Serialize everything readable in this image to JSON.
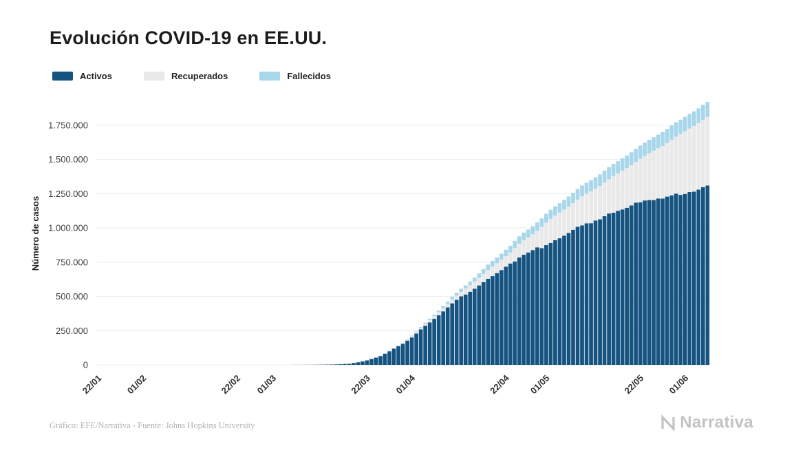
{
  "header": {
    "title": "Evolución COVID-19 en EE.UU."
  },
  "footer": {
    "credit": "Gráfico: EFE/Narrativa - Fuente: Johns Hopkins University",
    "logo_text": "Narrativa"
  },
  "chart_data": {
    "type": "bar",
    "stacked": true,
    "title": "Evolución COVID-19 en EE.UU.",
    "xlabel": "",
    "ylabel": "Número de casos",
    "grid": "horizontal",
    "legend_position": "top",
    "ylim": [
      0,
      1920061
    ],
    "yticks": [
      {
        "value": 0,
        "label": "0"
      },
      {
        "value": 250000,
        "label": "250.000"
      },
      {
        "value": 500000,
        "label": "500.000"
      },
      {
        "value": 750000,
        "label": "750.000"
      },
      {
        "value": 1000000,
        "label": "1.000.000"
      },
      {
        "value": 1250000,
        "label": "1.250.000"
      },
      {
        "value": 1500000,
        "label": "1.500.000"
      },
      {
        "value": 1750000,
        "label": "1.750.000"
      }
    ],
    "xticks": [
      {
        "label": "22/01",
        "index": 0
      },
      {
        "label": "01/02",
        "index": 10
      },
      {
        "label": "22/02",
        "index": 31
      },
      {
        "label": "01/03",
        "index": 39
      },
      {
        "label": "22/03",
        "index": 60
      },
      {
        "label": "01/04",
        "index": 70
      },
      {
        "label": "22/04",
        "index": 91
      },
      {
        "label": "01/05",
        "index": 100
      },
      {
        "label": "22/05",
        "index": 121
      },
      {
        "label": "01/06",
        "index": 131
      }
    ],
    "x": [
      "22/01",
      "23/01",
      "24/01",
      "25/01",
      "26/01",
      "27/01",
      "28/01",
      "29/01",
      "30/01",
      "31/01",
      "01/02",
      "02/02",
      "03/02",
      "04/02",
      "05/02",
      "06/02",
      "07/02",
      "08/02",
      "09/02",
      "10/02",
      "11/02",
      "12/02",
      "13/02",
      "14/02",
      "15/02",
      "16/02",
      "17/02",
      "18/02",
      "19/02",
      "20/02",
      "21/02",
      "22/02",
      "23/02",
      "24/02",
      "25/02",
      "26/02",
      "27/02",
      "28/02",
      "29/02",
      "01/03",
      "02/03",
      "03/03",
      "04/03",
      "05/03",
      "06/03",
      "07/03",
      "08/03",
      "09/03",
      "10/03",
      "11/03",
      "12/03",
      "13/03",
      "14/03",
      "15/03",
      "16/03",
      "17/03",
      "18/03",
      "19/03",
      "20/03",
      "21/03",
      "22/03",
      "23/03",
      "24/03",
      "25/03",
      "26/03",
      "27/03",
      "28/03",
      "29/03",
      "30/03",
      "31/03",
      "01/04",
      "02/04",
      "03/04",
      "04/04",
      "05/04",
      "06/04",
      "07/04",
      "08/04",
      "09/04",
      "10/04",
      "11/04",
      "12/04",
      "13/04",
      "14/04",
      "15/04",
      "16/04",
      "17/04",
      "18/04",
      "19/04",
      "20/04",
      "21/04",
      "22/04",
      "23/04",
      "24/04",
      "25/04",
      "26/04",
      "27/04",
      "28/04",
      "29/04",
      "30/04",
      "01/05",
      "02/05",
      "03/05",
      "04/05",
      "05/05",
      "06/05",
      "07/05",
      "08/05",
      "09/05",
      "10/05",
      "11/05",
      "12/05",
      "13/05",
      "14/05",
      "15/05",
      "16/05",
      "17/05",
      "18/05",
      "19/05",
      "20/05",
      "21/05",
      "22/05",
      "23/05",
      "24/05",
      "25/05",
      "26/05",
      "27/05",
      "28/05",
      "29/05",
      "30/05",
      "31/05",
      "01/06",
      "02/06",
      "03/06",
      "04/06",
      "05/06",
      "06/06"
    ],
    "series": [
      {
        "name": "Activos",
        "color": "#155380",
        "values": [
          1,
          1,
          2,
          2,
          5,
          5,
          5,
          6,
          6,
          7,
          8,
          8,
          11,
          11,
          11,
          12,
          12,
          12,
          12,
          12,
          13,
          13,
          13,
          13,
          13,
          13,
          13,
          13,
          13,
          13,
          15,
          15,
          15,
          51,
          51,
          57,
          58,
          60,
          67,
          67,
          87,
          110,
          140,
          201,
          296,
          408,
          511,
          670,
          923,
          1240,
          1610,
          2119,
          2657,
          3424,
          4530,
          6296,
          7560,
          13369,
          18709,
          25006,
          32681,
          43112,
          52686,
          64475,
          81946,
          99207,
          118380,
          135754,
          153185,
          177275,
          200141,
          228526,
          258792,
          285791,
          310005,
          336303,
          361738,
          390798,
          419549,
          449159,
          474663,
          500305,
          513608,
          534075,
          555928,
          579973,
          604388,
          628693,
          648088,
          669903,
          692217,
          716374,
          740151,
          755262,
          784027,
          803916,
          820514,
          838291,
          858222,
          852481,
          874378,
          890772,
          910206,
          924273,
          943363,
          963172,
          986325,
          1007756,
          1018212,
          1033563,
          1034464,
          1053987,
          1062857,
          1085462,
          1105120,
          1110690,
          1124930,
          1134783,
          1147255,
          1164102,
          1184167,
          1186931,
          1200373,
          1203437,
          1202952,
          1214973,
          1213856,
          1228669,
          1237833,
          1250142,
          1241050,
          1247899,
          1261772,
          1265087,
          1279447,
          1296989,
          1309410
        ]
      },
      {
        "name": "Recuperados",
        "color": "#e9e9e9",
        "values": [
          0,
          0,
          0,
          0,
          0,
          0,
          0,
          0,
          0,
          0,
          0,
          0,
          0,
          0,
          0,
          0,
          0,
          3,
          3,
          3,
          3,
          3,
          3,
          3,
          3,
          3,
          5,
          5,
          5,
          5,
          5,
          5,
          5,
          5,
          6,
          6,
          6,
          7,
          7,
          7,
          7,
          7,
          7,
          8,
          8,
          8,
          8,
          8,
          8,
          8,
          12,
          12,
          12,
          12,
          17,
          17,
          105,
          108,
          147,
          176,
          178,
          178,
          348,
          361,
          681,
          869,
          1072,
          2665,
          5644,
          7024,
          8474,
          9001,
          9707,
          14652,
          17448,
          19581,
          21763,
          23559,
          25410,
          28790,
          31270,
          32988,
          43482,
          47763,
          52096,
          54703,
          58545,
          64840,
          70337,
          72329,
          75204,
          77366,
          80203,
          99079,
          100372,
          106988,
          111424,
          115936,
          120720,
          153947,
          164015,
          175382,
          180152,
          187180,
          189910,
          192000,
          195036,
          198993,
          212534,
          216169,
          232733,
          233000,
          243430,
          246414,
          250747,
          268376,
          272265,
          283178,
          289392,
          294312,
          298418,
          318027,
          325210,
          342089,
          361239,
          366736,
          384902,
          391508,
          406446,
          416461,
          444758,
          458231,
          463868,
          479258,
          485002,
          491706,
          500849
        ]
      },
      {
        "name": "Fallecidos",
        "color": "#a8d6ea",
        "values": [
          0,
          0,
          0,
          0,
          0,
          0,
          0,
          0,
          0,
          0,
          0,
          0,
          0,
          0,
          0,
          0,
          0,
          0,
          0,
          0,
          0,
          0,
          0,
          0,
          0,
          0,
          0,
          0,
          0,
          0,
          0,
          0,
          0,
          0,
          0,
          0,
          0,
          0,
          1,
          1,
          6,
          7,
          11,
          12,
          15,
          19,
          22,
          26,
          28,
          33,
          41,
          48,
          58,
          63,
          85,
          108,
          118,
          200,
          244,
          307,
          417,
          557,
          706,
          942,
          1209,
          1581,
          2026,
          2467,
          2978,
          3873,
          4757,
          5926,
          7087,
          8407,
          9619,
          10783,
          12722,
          14695,
          16478,
          18586,
          20463,
          22020,
          23529,
          25832,
          28326,
          32916,
          36773,
          38664,
          40661,
          42094,
          44444,
          46611,
          48816,
          51017,
          53755,
          54881,
          56259,
          58355,
          60967,
          62996,
          65068,
          66385,
          67682,
          68922,
          71078,
          73431,
          75662,
          77180,
          78795,
          79528,
          80684,
          82389,
          84119,
          85898,
          87530,
          88754,
          89562,
          90347,
          91921,
          93439,
          94702,
          95979,
          97087,
          97720,
          98223,
          98916,
          100418,
          101573,
          102808,
          103781,
          104383,
          105147,
          106181,
          107175,
          108211,
          109143,
          109802
        ]
      }
    ]
  }
}
